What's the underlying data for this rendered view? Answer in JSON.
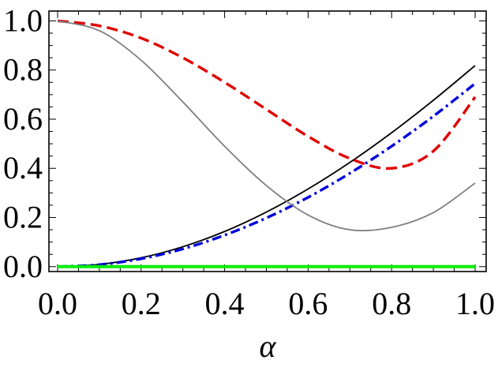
{
  "chart_data": {
    "type": "line",
    "title": "",
    "xlabel": "α",
    "ylabel": "",
    "xlim": [
      0.0,
      1.0
    ],
    "ylim": [
      -0.02,
      1.04
    ],
    "xticks": [
      0.0,
      0.2,
      0.4,
      0.6,
      0.8,
      1.0
    ],
    "yticks": [
      0.0,
      0.2,
      0.4,
      0.6,
      0.8,
      1.0
    ],
    "xtick_labels": [
      "0.0",
      "0.2",
      "0.4",
      "0.6",
      "0.8",
      "1.0"
    ],
    "ytick_labels": [
      "0.0",
      "0.2",
      "0.4",
      "0.6",
      "0.8",
      "1.0"
    ],
    "grid": false,
    "legend": "none",
    "series": [
      {
        "color": "#000000",
        "style": "solid",
        "x": [
          0.0,
          0.1,
          0.2,
          0.3,
          0.4,
          0.5,
          0.6,
          0.7,
          0.8,
          0.9,
          1.0
        ],
        "y": [
          0.0,
          0.009,
          0.036,
          0.081,
          0.143,
          0.222,
          0.316,
          0.424,
          0.545,
          0.677,
          0.818
        ]
      },
      {
        "color": "#0000dd",
        "style": "dashdot",
        "x": [
          0.0,
          0.1,
          0.2,
          0.3,
          0.4,
          0.5,
          0.6,
          0.7,
          0.8,
          0.9,
          1.0
        ],
        "y": [
          0.0,
          0.008,
          0.032,
          0.072,
          0.128,
          0.198,
          0.282,
          0.38,
          0.49,
          0.612,
          0.745
        ]
      },
      {
        "color": "#e00000",
        "style": "dashed",
        "x": [
          0.0,
          0.1,
          0.2,
          0.3,
          0.4,
          0.5,
          0.6,
          0.7,
          0.8,
          0.9,
          1.0
        ],
        "y": [
          1.0,
          0.98,
          0.93,
          0.85,
          0.75,
          0.64,
          0.53,
          0.44,
          0.4,
          0.47,
          0.69
        ]
      },
      {
        "color": "#808080",
        "style": "solid",
        "x": [
          0.0,
          0.1,
          0.2,
          0.3,
          0.4,
          0.5,
          0.6,
          0.7,
          0.8,
          0.9,
          1.0
        ],
        "y": [
          1.0,
          0.96,
          0.84,
          0.67,
          0.49,
          0.33,
          0.21,
          0.15,
          0.16,
          0.22,
          0.34
        ]
      },
      {
        "color": "#00ee00",
        "style": "solid",
        "x": [
          0.0,
          1.0
        ],
        "y": [
          0.0,
          0.0
        ]
      }
    ]
  }
}
